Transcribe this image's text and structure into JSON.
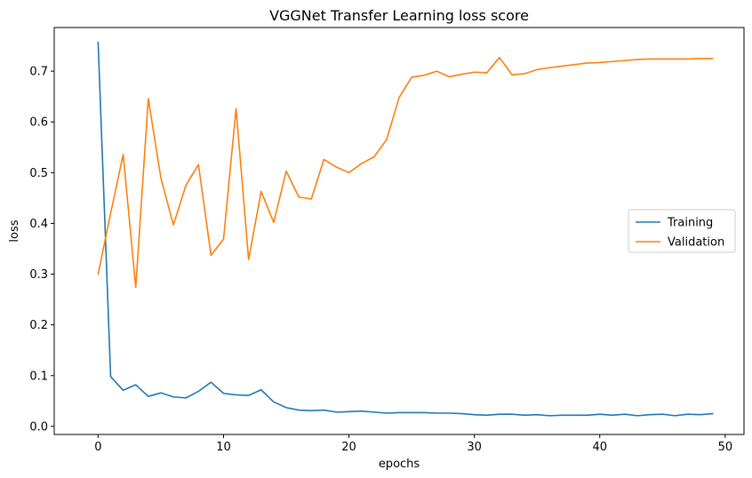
{
  "chart_data": {
    "type": "line",
    "title": "VGGNet Transfer Learning loss score",
    "xlabel": "epochs",
    "ylabel": "loss",
    "xlim": [
      -3.5,
      51.5
    ],
    "ylim": [
      -0.016,
      0.786
    ],
    "xticks": [
      0,
      10,
      20,
      30,
      40,
      50
    ],
    "yticks": [
      0.0,
      0.1,
      0.2,
      0.3,
      0.4,
      0.5,
      0.6,
      0.7
    ],
    "xtick_labels": [
      "0",
      "10",
      "20",
      "30",
      "40",
      "50"
    ],
    "ytick_labels": [
      "0.0",
      "0.1",
      "0.2",
      "0.3",
      "0.4",
      "0.5",
      "0.6",
      "0.7"
    ],
    "grid": false,
    "legend_position": "center-right",
    "x": [
      0,
      1,
      2,
      3,
      4,
      5,
      6,
      7,
      8,
      9,
      10,
      11,
      12,
      13,
      14,
      15,
      16,
      17,
      18,
      19,
      20,
      21,
      22,
      23,
      24,
      25,
      26,
      27,
      28,
      29,
      30,
      31,
      32,
      33,
      34,
      35,
      36,
      37,
      38,
      39,
      40,
      41,
      42,
      43,
      44,
      45,
      46,
      47,
      48,
      49
    ],
    "series": [
      {
        "name": "Training",
        "color": "#1f77b4",
        "values": [
          0.757,
          0.098,
          0.071,
          0.082,
          0.059,
          0.066,
          0.058,
          0.056,
          0.069,
          0.087,
          0.065,
          0.062,
          0.061,
          0.072,
          0.048,
          0.037,
          0.032,
          0.031,
          0.032,
          0.028,
          0.029,
          0.03,
          0.028,
          0.026,
          0.027,
          0.027,
          0.027,
          0.026,
          0.026,
          0.025,
          0.023,
          0.022,
          0.024,
          0.024,
          0.022,
          0.023,
          0.021,
          0.022,
          0.022,
          0.022,
          0.024,
          0.022,
          0.024,
          0.021,
          0.023,
          0.024,
          0.021,
          0.024,
          0.023,
          0.025
        ]
      },
      {
        "name": "Validation",
        "color": "#ff7f0e",
        "values": [
          0.3,
          0.42,
          0.536,
          0.274,
          0.646,
          0.49,
          0.397,
          0.475,
          0.516,
          0.337,
          0.369,
          0.626,
          0.329,
          0.463,
          0.402,
          0.503,
          0.452,
          0.448,
          0.526,
          0.511,
          0.5,
          0.518,
          0.531,
          0.565,
          0.648,
          0.688,
          0.692,
          0.7,
          0.689,
          0.694,
          0.698,
          0.697,
          0.727,
          0.693,
          0.695,
          0.703,
          0.707,
          0.71,
          0.713,
          0.716,
          0.717,
          0.719,
          0.721,
          0.723,
          0.724,
          0.724,
          0.724,
          0.724,
          0.725,
          0.725
        ]
      }
    ]
  }
}
